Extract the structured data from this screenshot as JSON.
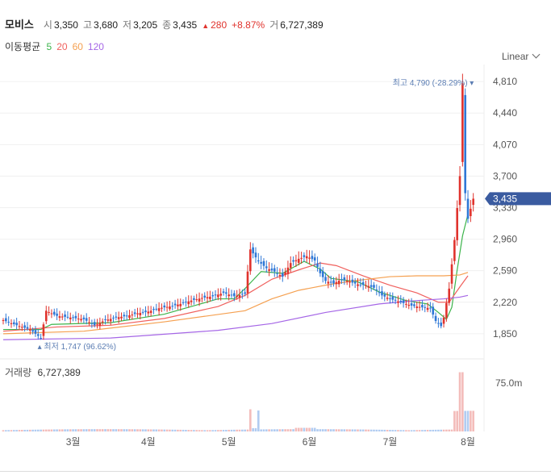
{
  "header": {
    "name": "모비스",
    "open_label": "시",
    "open": "3,350",
    "high_label": "고",
    "high": "3,680",
    "low_label": "저",
    "low": "3,205",
    "close_label": "종",
    "close": "3,435",
    "change": "280",
    "change_pct": "+8.87%",
    "volume_label": "거",
    "volume": "6,727,389"
  },
  "moving_avg": {
    "label": "이동평균",
    "periods": [
      "5",
      "20",
      "60",
      "120"
    ],
    "colors": [
      "#3cb44b",
      "#f0605d",
      "#f5a050",
      "#a566e6"
    ]
  },
  "scale_button": "Linear",
  "volume_panel": {
    "label": "거래량",
    "value": "6,727,389",
    "axis_label": "75.0m"
  },
  "colors": {
    "up": "#e0332d",
    "down": "#2f78d6",
    "price_tag": "#3a5ba0"
  },
  "chart_data": {
    "type": "candlestick",
    "y_ticks": [
      "4,810",
      "4,440",
      "4,070",
      "3,700",
      "3,330",
      "2,960",
      "2,590",
      "2,220",
      "1,850"
    ],
    "y_tick_values": [
      4810,
      4440,
      4070,
      3700,
      3330,
      2960,
      2590,
      2220,
      1850
    ],
    "ylim": [
      1650,
      5010
    ],
    "x_ticks": [
      "3월",
      "4월",
      "5월",
      "6월",
      "7월",
      "8월"
    ],
    "x_tick_days": [
      26,
      54,
      84,
      114,
      144,
      173
    ],
    "last_day": 179,
    "volume_max_label": 75000000,
    "high_annotation": {
      "label": "최고",
      "value": "4,790",
      "pct": "(-28.29%)",
      "price": 4790,
      "day": 177
    },
    "low_annotation": {
      "label": "최저",
      "value": "1,747",
      "pct": "(96.62%)",
      "price": 1747,
      "day": 14
    },
    "current_price_tag": {
      "value": "3,435",
      "price": 3435
    },
    "close_series": [
      [
        0,
        2010
      ],
      [
        5,
        1950
      ],
      [
        10,
        1900
      ],
      [
        14,
        1800
      ],
      [
        16,
        2120
      ],
      [
        20,
        2060
      ],
      [
        25,
        2040
      ],
      [
        30,
        2020
      ],
      [
        34,
        1950
      ],
      [
        38,
        2010
      ],
      [
        42,
        2040
      ],
      [
        46,
        2060
      ],
      [
        50,
        2090
      ],
      [
        54,
        2110
      ],
      [
        58,
        2150
      ],
      [
        62,
        2170
      ],
      [
        66,
        2200
      ],
      [
        70,
        2240
      ],
      [
        74,
        2270
      ],
      [
        78,
        2290
      ],
      [
        82,
        2330
      ],
      [
        86,
        2290
      ],
      [
        90,
        2320
      ],
      [
        92,
        2840
      ],
      [
        95,
        2700
      ],
      [
        98,
        2620
      ],
      [
        101,
        2580
      ],
      [
        104,
        2520
      ],
      [
        107,
        2680
      ],
      [
        110,
        2730
      ],
      [
        113,
        2760
      ],
      [
        116,
        2710
      ],
      [
        118,
        2560
      ],
      [
        120,
        2470
      ],
      [
        123,
        2440
      ],
      [
        126,
        2490
      ],
      [
        129,
        2460
      ],
      [
        132,
        2430
      ],
      [
        135,
        2420
      ],
      [
        138,
        2390
      ],
      [
        141,
        2300
      ],
      [
        144,
        2260
      ],
      [
        148,
        2220
      ],
      [
        152,
        2180
      ],
      [
        156,
        2160
      ],
      [
        159,
        2150
      ],
      [
        161,
        2000
      ],
      [
        163,
        1940
      ],
      [
        164,
        2040
      ],
      [
        166,
        2380
      ],
      [
        168,
        2950
      ],
      [
        170,
        3700
      ],
      [
        171,
        4790
      ],
      [
        172,
        3500
      ],
      [
        173,
        3200
      ],
      [
        175,
        3435
      ]
    ],
    "moving_averages": {
      "5": [
        [
          0,
          1900
        ],
        [
          14,
          1900
        ],
        [
          18,
          1960
        ],
        [
          40,
          1980
        ],
        [
          60,
          2080
        ],
        [
          80,
          2260
        ],
        [
          86,
          2260
        ],
        [
          90,
          2380
        ],
        [
          96,
          2580
        ],
        [
          104,
          2560
        ],
        [
          112,
          2700
        ],
        [
          118,
          2610
        ],
        [
          122,
          2500
        ],
        [
          132,
          2460
        ],
        [
          140,
          2340
        ],
        [
          150,
          2240
        ],
        [
          158,
          2200
        ],
        [
          162,
          2100
        ],
        [
          165,
          2020
        ],
        [
          167,
          2160
        ],
        [
          169,
          2600
        ],
        [
          171,
          3000
        ],
        [
          173,
          3250
        ]
      ],
      "20": [
        [
          0,
          1880
        ],
        [
          20,
          1930
        ],
        [
          40,
          1950
        ],
        [
          60,
          2030
        ],
        [
          80,
          2170
        ],
        [
          90,
          2300
        ],
        [
          100,
          2490
        ],
        [
          110,
          2600
        ],
        [
          118,
          2680
        ],
        [
          124,
          2650
        ],
        [
          134,
          2530
        ],
        [
          144,
          2420
        ],
        [
          154,
          2330
        ],
        [
          162,
          2220
        ],
        [
          166,
          2220
        ],
        [
          170,
          2400
        ],
        [
          173,
          2530
        ]
      ],
      "60": [
        [
          0,
          1850
        ],
        [
          30,
          1880
        ],
        [
          60,
          1990
        ],
        [
          90,
          2120
        ],
        [
          100,
          2260
        ],
        [
          110,
          2360
        ],
        [
          120,
          2420
        ],
        [
          130,
          2470
        ],
        [
          144,
          2520
        ],
        [
          154,
          2530
        ],
        [
          164,
          2530
        ],
        [
          170,
          2540
        ],
        [
          173,
          2570
        ]
      ],
      "120": [
        [
          0,
          1780
        ],
        [
          40,
          1800
        ],
        [
          80,
          1890
        ],
        [
          100,
          1970
        ],
        [
          120,
          2100
        ],
        [
          140,
          2200
        ],
        [
          154,
          2240
        ],
        [
          164,
          2260
        ],
        [
          170,
          2280
        ],
        [
          173,
          2300
        ]
      ]
    }
  }
}
